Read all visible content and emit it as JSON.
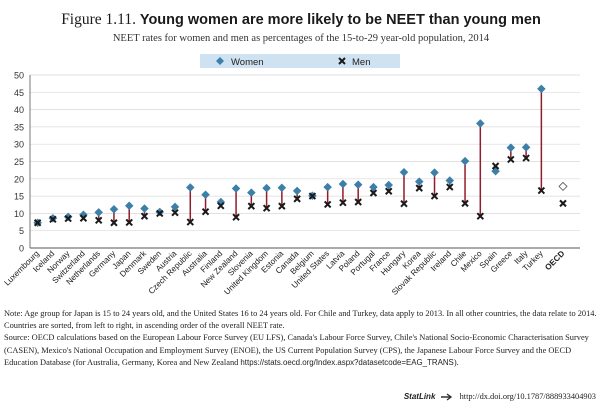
{
  "title_prefix": "Figure 1.11.",
  "title_main": "Young women are more likely to be NEET than young men",
  "subtitle": "NEET rates for women and men as percentages of the 15-to-29 year-old population, 2014",
  "colors": {
    "women": "#3c7fa8",
    "men": "#1a1a1a",
    "axis_band": "#cfe2f1",
    "stem": "#8f1d2c",
    "grid": "#d9d9d9"
  },
  "chart_data": {
    "type": "scatter",
    "ylim": [
      0,
      50
    ],
    "yticks": [
      0,
      5,
      10,
      15,
      20,
      25,
      30,
      35,
      40,
      45,
      50
    ],
    "grid": true,
    "legend_position": "top-center",
    "series": [
      {
        "name": "Women",
        "marker": "diamond"
      },
      {
        "name": "Men",
        "marker": "cross"
      }
    ],
    "categories": [
      "Luxembourg",
      "Iceland",
      "Norway",
      "Switzerland",
      "Netherlands",
      "Germany",
      "Japan",
      "Denmark",
      "Sweden",
      "Austria",
      "Czech Republic",
      "Australia",
      "Finland",
      "New Zealand",
      "Slovenia",
      "United Kingdom",
      "Estonia",
      "Canada",
      "Belgium",
      "United States",
      "Latvia",
      "Poland",
      "Portugal",
      "France",
      "Hungary",
      "Korea",
      "Slovak Republic",
      "Ireland",
      "Chile",
      "Mexico",
      "Spain",
      "Greece",
      "Italy",
      "Turkey",
      "OECD"
    ],
    "women": [
      7.3,
      8.6,
      9.0,
      9.6,
      10.3,
      11.2,
      12.2,
      11.4,
      10.4,
      11.9,
      17.5,
      15.4,
      13.3,
      17.2,
      16.0,
      17.3,
      17.4,
      16.5,
      15.1,
      17.6,
      18.5,
      18.3,
      17.6,
      18.2,
      21.9,
      19.2,
      21.8,
      19.5,
      25.1,
      36.0,
      22.2,
      29.0,
      29.1,
      46.0,
      17.8
    ],
    "men": [
      7.3,
      8.3,
      8.5,
      8.6,
      8.0,
      7.3,
      7.4,
      9.2,
      10.0,
      10.2,
      7.5,
      10.5,
      12.2,
      8.9,
      12.1,
      11.5,
      12.1,
      14.2,
      15.0,
      12.6,
      13.1,
      13.3,
      15.9,
      16.4,
      12.8,
      17.3,
      15.0,
      17.6,
      12.9,
      9.2,
      23.7,
      25.6,
      26.0,
      16.6,
      12.9
    ],
    "bold_categories": [
      "OECD"
    ]
  },
  "notes": {
    "note": "Note: Age group for Japan is 15 to 24 years old, and the United States 16 to 24 years old. For Chile and Turkey, data apply to 2013. In all other countries, the data relate to 2014.",
    "sorting": "Countries are sorted, from left to right, in ascending order of the overall NEET rate.",
    "source": "Source: OECD calculations based on the European Labour Force Survey (EU LFS), Canada's Labour Force Survey, Chile's National Socio-Economic Characterisation Survey (CASEN), Mexico's National Occupation and Employment Survey (ENOE), the US Current Population Survey (CPS), the Japanese Labour Force Survey and the OECD Education Database (for Australia, Germany, Korea and New Zealand",
    "source_url": "https://stats.oecd.org/Index.aspx?datasetcode=EAG_TRANS",
    "source_tail": ")."
  },
  "statlink": {
    "label": "StatLink",
    "url": "http://dx.doi.org/10.1787/888933404903"
  }
}
